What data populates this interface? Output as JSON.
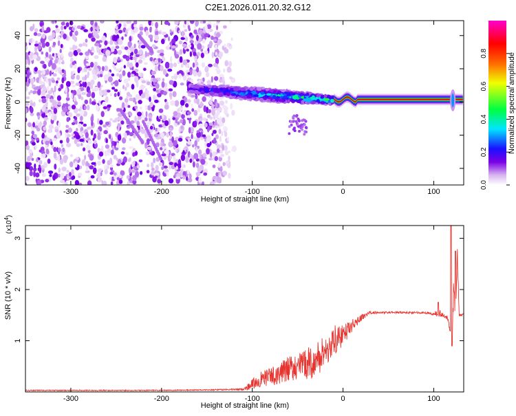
{
  "figure": {
    "title": "C2E1.2026.011.20.32.G12"
  },
  "chart_data": [
    {
      "type": "heatmap",
      "xlabel": "Height of straight line (km)",
      "ylabel": "Frequency (Hz)",
      "xlim": [
        -350,
        133
      ],
      "ylim": [
        -50,
        49
      ],
      "xticks": [
        -300,
        -200,
        -100,
        0,
        100
      ],
      "yticks": [
        -40,
        -20,
        0,
        20,
        40
      ],
      "colorbar": {
        "label": "Normalized spectral amplitude",
        "range": [
          0,
          1
        ],
        "ticks": [
          0.0,
          0.2,
          0.4,
          0.6,
          0.8
        ],
        "tick_labels": [
          "0.0",
          "0.2",
          "0.4",
          "0.6",
          "0.8"
        ],
        "colors": [
          "#ffffff",
          "#d8b4f0",
          "#7a00e6",
          "#1a10ff",
          "#00e5ff",
          "#00ff40",
          "#f0ff00",
          "#ff6a00",
          "#ff0000",
          "#ff00cc"
        ]
      },
      "regions": [
        {
          "description_values": "diffuse noise",
          "x_range": [
            -350,
            -115
          ],
          "y_range": [
            -50,
            49
          ],
          "amplitude": 0.12
        },
        {
          "description_values": "signal band",
          "x_range": [
            -170,
            -10
          ],
          "y_center_start": 8,
          "y_center_end": 1,
          "amplitude": 0.4
        },
        {
          "description_values": "stable carrier",
          "x_range": [
            -10,
            133
          ],
          "y_center": 1.5,
          "amplitude": 0.9
        }
      ]
    },
    {
      "type": "line",
      "xlabel": "Height of straight line (km)",
      "ylabel": "SNR (10 * v/v)",
      "y_scale_label": "(x10",
      "y_scale_exp": "4",
      "y_scale_close": ")",
      "xlim": [
        -350,
        133
      ],
      "ylim": [
        0,
        3.25
      ],
      "xticks": [
        -300,
        -200,
        -100,
        0,
        100
      ],
      "yticks": [
        1,
        2,
        3
      ],
      "series": [
        {
          "color": "#e8342f",
          "x": [
            -350,
            -300,
            -250,
            -200,
            -150,
            -110,
            -100,
            -90,
            -80,
            -70,
            -60,
            -50,
            -40,
            -30,
            -20,
            -10,
            0,
            10,
            20,
            30,
            40,
            50,
            60,
            70,
            80,
            90,
            100,
            105,
            110,
            115,
            118,
            120,
            122,
            124,
            126,
            128,
            130,
            133
          ],
          "values": [
            0.03,
            0.03,
            0.03,
            0.03,
            0.04,
            0.05,
            0.15,
            0.25,
            0.3,
            0.35,
            0.45,
            0.5,
            0.55,
            0.6,
            0.8,
            1.0,
            1.1,
            1.3,
            1.45,
            1.55,
            1.55,
            1.55,
            1.55,
            1.55,
            1.55,
            1.55,
            1.52,
            1.55,
            1.5,
            1.45,
            1.2,
            0.92,
            2.0,
            1.5,
            2.7,
            1.5,
            1.5,
            1.52
          ],
          "noise_amplitude": [
            0.01,
            0.01,
            0.01,
            0.01,
            0.01,
            0.02,
            0.1,
            0.15,
            0.18,
            0.2,
            0.25,
            0.25,
            0.3,
            0.35,
            0.35,
            0.3,
            0.2,
            0.12,
            0.06,
            0.03,
            0.02,
            0.02,
            0.02,
            0.02,
            0.02,
            0.02,
            0.03,
            0.1,
            0.04,
            0.04,
            0.05,
            0.02,
            0.3,
            0.05,
            0.1,
            0.03,
            0.02,
            0.02
          ],
          "spikes": [
            {
              "x": 119,
              "y": 3.25
            },
            {
              "x": 120,
              "y": 0.9
            },
            {
              "x": 124,
              "y": 2.75
            },
            {
              "x": 105,
              "y": 1.75
            }
          ]
        }
      ]
    }
  ]
}
